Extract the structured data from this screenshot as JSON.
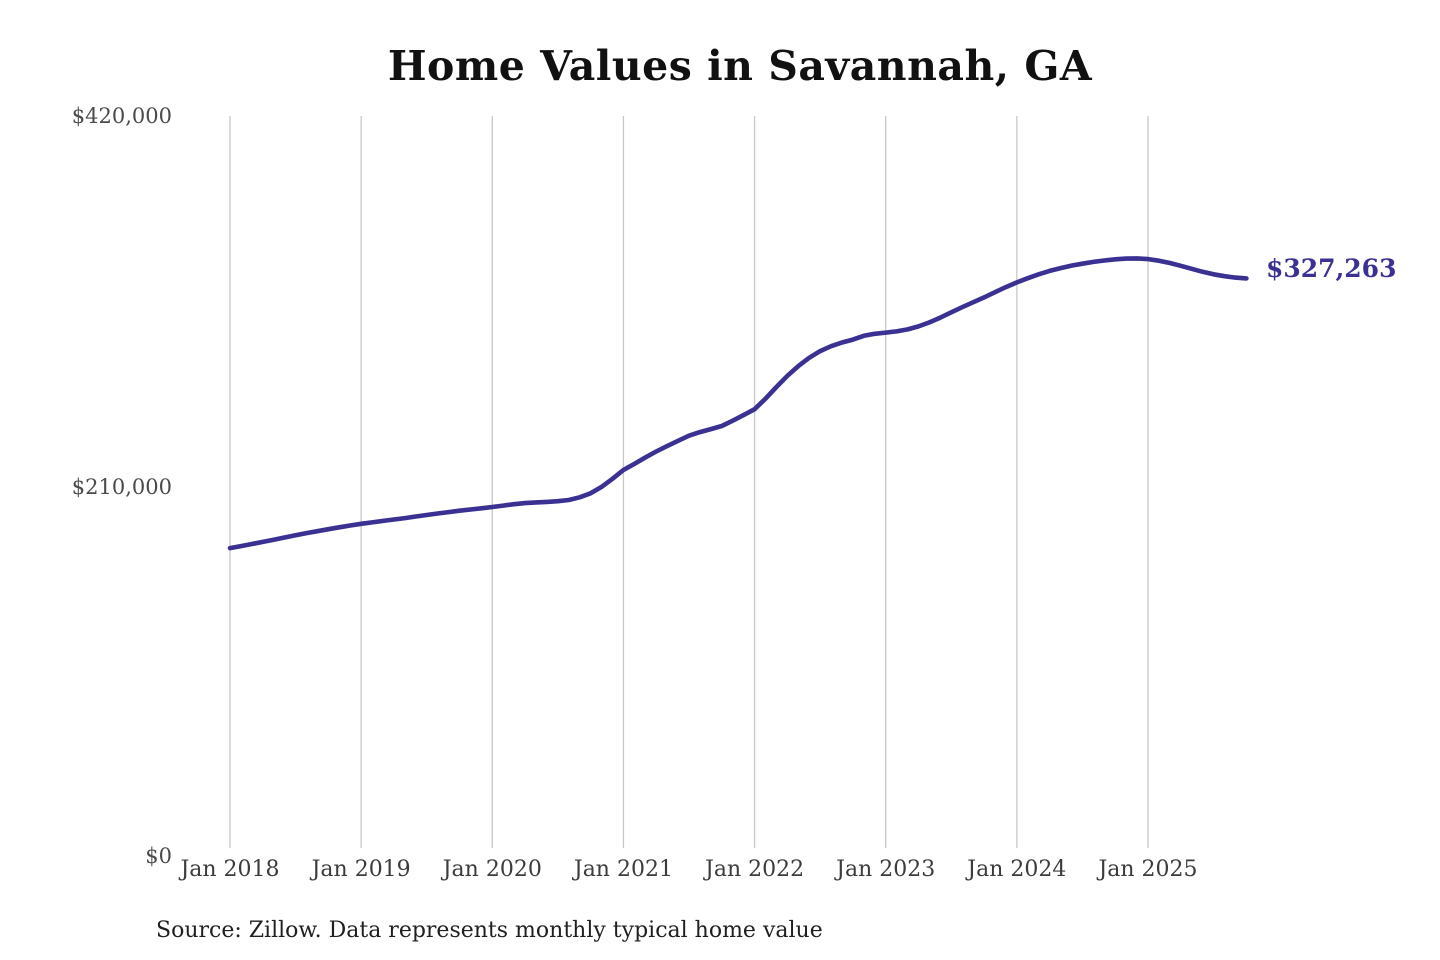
{
  "page": {
    "background": "#ffffff"
  },
  "chart_data": {
    "type": "line",
    "title": "Home Values in Savannah, GA",
    "source_note": "Source: Zillow. Data represents monthly typical home value",
    "series_name": "Monthly typical home value",
    "x_start": "Jan 2018",
    "x_end": "Oct 2025",
    "frequency": "monthly",
    "x_tick_labels": [
      "Jan 2018",
      "Jan 2019",
      "Jan 2020",
      "Jan 2021",
      "Jan 2022",
      "Jan 2023",
      "Jan 2024",
      "Jan 2025"
    ],
    "y_tick_labels": [
      "$0",
      "$210,000",
      "$420,000"
    ],
    "y_ticks": [
      0,
      210000,
      420000
    ],
    "ylim": [
      0,
      420000
    ],
    "grid": "vertical-only",
    "legend": "none",
    "end_label": "$327,263",
    "final_value": 327263,
    "values": [
      174200,
      175300,
      176500,
      177700,
      178900,
      180200,
      181500,
      182700,
      183800,
      184900,
      186000,
      187000,
      188000,
      188800,
      189600,
      190400,
      191200,
      192100,
      193000,
      193800,
      194600,
      195400,
      196100,
      196800,
      197500,
      198300,
      199100,
      199700,
      200100,
      200400,
      200800,
      201500,
      203000,
      205300,
      208900,
      213500,
      218500,
      222000,
      225600,
      229000,
      232100,
      235100,
      238000,
      240000,
      241700,
      243500,
      246500,
      249700,
      253000,
      259000,
      265600,
      272000,
      277500,
      282200,
      286000,
      288800,
      290900,
      292500,
      294700,
      295800,
      296500,
      297200,
      298300,
      300000,
      302300,
      305000,
      308000,
      310900,
      313700,
      316500,
      319400,
      322300,
      325000,
      327400,
      329600,
      331500,
      333100,
      334500,
      335600,
      336600,
      337400,
      338100,
      338500,
      338600,
      338200,
      337300,
      336000,
      334400,
      332700,
      331000,
      329600,
      328500,
      327700,
      327263
    ],
    "colors": {
      "line": "#3a3193",
      "grid": "#c8c8c8",
      "title": "#111111",
      "axis_labels": "#4a4a4a",
      "end_label": "#3a3193"
    }
  }
}
